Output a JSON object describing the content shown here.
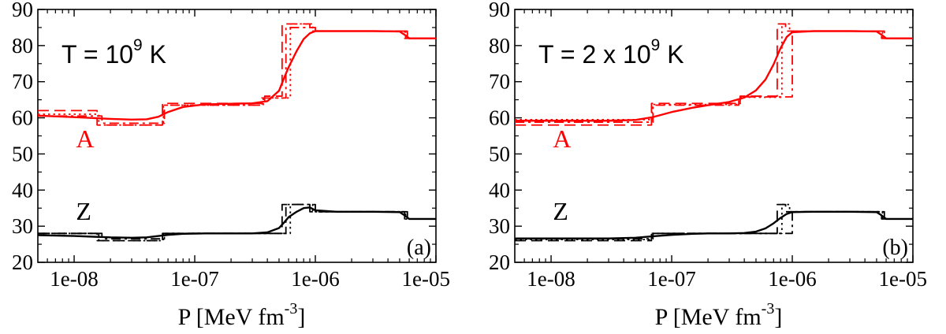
{
  "chart_data": [
    {
      "type": "line",
      "panel": "(a)",
      "annotation": {
        "base": "T = 10",
        "sup": "9",
        "suffix": " K"
      },
      "xlabel": {
        "base": "P [MeV fm",
        "sup": "-3",
        "suffix": "]"
      },
      "xscale": "log",
      "xlim": [
        5e-09,
        1e-05
      ],
      "ylim": [
        20,
        90
      ],
      "xticks": [
        1e-08,
        1e-07,
        1e-06,
        1e-05
      ],
      "xtick_labels": [
        "1e-08",
        "1e-07",
        "1e-06",
        "1e-05"
      ],
      "yticks": [
        20,
        30,
        40,
        50,
        60,
        70,
        80,
        90
      ],
      "ytick_labels": [
        "20",
        "30",
        "40",
        "50",
        "60",
        "70",
        "80",
        "90"
      ],
      "series": [
        {
          "name": "A",
          "color": "#ff0000",
          "style": "solid",
          "x": [
            5e-09,
            1e-08,
            2e-08,
            3e-08,
            4e-08,
            5e-08,
            6e-08,
            8e-08,
            1.2e-07,
            2e-07,
            3e-07,
            4e-07,
            5e-07,
            5.5e-07,
            6e-07,
            7e-07,
            8e-07,
            9e-07,
            1e-06,
            1.5e-06,
            3e-06,
            5e-06,
            5.5e-06,
            6e-06,
            1e-05
          ],
          "y": [
            60.6,
            60.2,
            59.7,
            59.5,
            59.6,
            60.3,
            61.6,
            63.0,
            63.7,
            63.9,
            64.0,
            64.6,
            67.5,
            71.0,
            74.0,
            78.5,
            81.8,
            83.4,
            84.0,
            84.0,
            84.0,
            83.9,
            83.0,
            82.0,
            82.0
          ]
        },
        {
          "name": "A (dashed)",
          "color": "#ff0000",
          "style": "dashed",
          "x": [
            5e-09,
            1.55e-08,
            1.55e-08,
            5.4e-08,
            5.4e-08,
            3.8e-07,
            3.8e-07,
            5.3e-07,
            5.3e-07,
            9e-07,
            9e-07,
            5.5e-06,
            5.5e-06,
            1e-05
          ],
          "y": [
            62,
            62,
            58,
            58,
            64,
            64,
            66,
            66,
            86,
            86,
            84,
            84,
            82,
            82
          ]
        },
        {
          "name": "A (dash-dot)",
          "color": "#ff0000",
          "style": "dashdot",
          "x": [
            5e-09,
            1.7e-08,
            1.7e-08,
            5.6e-08,
            5.6e-08,
            3.6e-07,
            3.6e-07,
            5.7e-07,
            5.7e-07,
            1e-06,
            1e-06,
            5.8e-06,
            5.8e-06,
            1e-05
          ],
          "y": [
            60.5,
            60.5,
            58.5,
            58.5,
            63.5,
            63.5,
            65.5,
            65.5,
            85,
            85,
            84,
            84,
            82,
            82
          ]
        },
        {
          "name": "A (dotted)",
          "color": "#ff0000",
          "style": "dotted",
          "x": [
            5e-09,
            1.6e-08,
            1.6e-08,
            5.5e-08,
            5.5e-08,
            3.7e-07,
            3.7e-07,
            6.2e-07,
            6.2e-07,
            9.5e-07,
            9.5e-07,
            5.6e-06,
            5.6e-06,
            1e-05
          ],
          "y": [
            61,
            61,
            58,
            58,
            63.5,
            63.5,
            65.5,
            65.5,
            86,
            86,
            84,
            84,
            82,
            82
          ]
        },
        {
          "name": "Z",
          "color": "#000000",
          "style": "solid",
          "x": [
            5e-09,
            1e-08,
            2e-08,
            3e-08,
            4e-08,
            5e-08,
            6e-08,
            8e-08,
            1.2e-07,
            2e-07,
            3e-07,
            4e-07,
            5e-07,
            5.5e-07,
            6e-07,
            7e-07,
            8e-07,
            9e-07,
            1e-06,
            1.5e-06,
            3e-06,
            5e-06,
            5.5e-06,
            6e-06,
            1e-05
          ],
          "y": [
            27.5,
            27.3,
            26.9,
            26.8,
            26.9,
            27.3,
            27.6,
            27.9,
            28.0,
            28.0,
            28.0,
            28.3,
            29.5,
            31.0,
            32.5,
            34.0,
            35.0,
            35.2,
            34.4,
            34.0,
            34.0,
            33.9,
            33.0,
            32.0,
            32.0
          ]
        },
        {
          "name": "Z (dashed)",
          "color": "#000000",
          "style": "dashed",
          "x": [
            5e-09,
            1.55e-08,
            1.55e-08,
            5.4e-08,
            5.4e-08,
            3.8e-07,
            3.8e-07,
            5.3e-07,
            5.3e-07,
            9e-07,
            9e-07,
            5.5e-06,
            5.5e-06,
            1e-05
          ],
          "y": [
            28,
            28,
            26,
            26,
            28,
            28,
            28,
            28,
            36,
            36,
            34,
            34,
            32,
            32
          ]
        },
        {
          "name": "Z (dash-dot)",
          "color": "#000000",
          "style": "dashdot",
          "x": [
            5e-09,
            1.7e-08,
            1.7e-08,
            5.6e-08,
            5.6e-08,
            5.7e-07,
            5.7e-07,
            1e-06,
            1e-06,
            5.8e-06,
            5.8e-06,
            1e-05
          ],
          "y": [
            28,
            28,
            26.5,
            26.5,
            28,
            28,
            36,
            36,
            34,
            34,
            32,
            32
          ]
        },
        {
          "name": "Z (dotted)",
          "color": "#000000",
          "style": "dotted",
          "x": [
            5e-09,
            1.6e-08,
            1.6e-08,
            5.5e-08,
            5.5e-08,
            6.2e-07,
            6.2e-07,
            9.5e-07,
            9.5e-07,
            5.6e-06,
            5.6e-06,
            1e-05
          ],
          "y": [
            28,
            28,
            26,
            26,
            28,
            28,
            36,
            36,
            34,
            34,
            32,
            32
          ]
        }
      ],
      "series_labels": [
        {
          "text": "A",
          "color": "#ff0000",
          "x": 7e-09,
          "y": 50.5
        },
        {
          "text": "Z",
          "color": "#000000",
          "x": 7e-09,
          "y": 30.5
        }
      ]
    },
    {
      "type": "line",
      "panel": "(b)",
      "annotation": {
        "base": "T = 2 x 10",
        "sup": "9",
        "suffix": " K"
      },
      "xlabel": {
        "base": "P [MeV fm",
        "sup": "-3",
        "suffix": "]"
      },
      "xscale": "log",
      "xlim": [
        5e-09,
        1e-05
      ],
      "ylim": [
        20,
        90
      ],
      "xticks": [
        1e-08,
        1e-07,
        1e-06,
        1e-05
      ],
      "xtick_labels": [
        "1e-08",
        "1e-07",
        "1e-06",
        "1e-05"
      ],
      "yticks": [
        20,
        30,
        40,
        50,
        60,
        70,
        80,
        90
      ],
      "ytick_labels": [
        "20",
        "30",
        "40",
        "50",
        "60",
        "70",
        "80",
        "90"
      ],
      "series": [
        {
          "name": "A",
          "color": "#ff0000",
          "style": "solid",
          "x": [
            5e-09,
            1e-08,
            3e-08,
            5e-08,
            7e-08,
            1e-07,
            1.5e-07,
            2e-07,
            3e-07,
            4e-07,
            5e-07,
            6e-07,
            7e-07,
            8e-07,
            9e-07,
            1e-06,
            1.5e-06,
            3e-06,
            5e-06,
            5.5e-06,
            6e-06,
            1e-05
          ],
          "y": [
            59.2,
            59.2,
            59.2,
            59.4,
            60.2,
            61.6,
            62.8,
            63.5,
            64.4,
            65.6,
            67.6,
            70.6,
            74.8,
            79.3,
            82.4,
            83.7,
            84.0,
            84.0,
            83.9,
            83.0,
            82.0,
            82.0
          ]
        },
        {
          "name": "A (dashed)",
          "color": "#ff0000",
          "style": "dashed",
          "x": [
            5e-09,
            6.8e-08,
            6.8e-08,
            3.7e-07,
            3.7e-07,
            7.5e-07,
            7.5e-07,
            8.8e-07,
            8.8e-07,
            5.5e-06,
            5.5e-06,
            1e-05
          ],
          "y": [
            58,
            58,
            64,
            64,
            66,
            66,
            86,
            86,
            84,
            84,
            82,
            82
          ]
        },
        {
          "name": "A (dash-dot)",
          "color": "#ff0000",
          "style": "dashdot",
          "x": [
            5e-09,
            7e-08,
            7e-08,
            3.6e-07,
            3.6e-07,
            1e-06,
            1e-06,
            5.8e-06,
            5.8e-06,
            1e-05
          ],
          "y": [
            58.8,
            58.8,
            63.5,
            63.5,
            65.8,
            65.8,
            84,
            84,
            82,
            82
          ]
        },
        {
          "name": "A (dotted)",
          "color": "#ff0000",
          "style": "dotted",
          "x": [
            5e-09,
            6.9e-08,
            6.9e-08,
            3.7e-07,
            3.7e-07,
            8.2e-07,
            8.2e-07,
            9.5e-07,
            9.5e-07,
            5.6e-06,
            5.6e-06,
            1e-05
          ],
          "y": [
            59.5,
            59.5,
            63.7,
            63.7,
            65.7,
            65.7,
            86,
            86,
            84,
            84,
            82,
            82
          ]
        },
        {
          "name": "Z",
          "color": "#000000",
          "style": "solid",
          "x": [
            5e-09,
            1e-08,
            3e-08,
            5e-08,
            7e-08,
            1e-07,
            1.5e-07,
            2e-07,
            3e-07,
            4e-07,
            5e-07,
            6e-07,
            7e-07,
            8e-07,
            9e-07,
            1e-06,
            1.5e-06,
            3e-06,
            5e-06,
            5.5e-06,
            6e-06,
            1e-05
          ],
          "y": [
            26.6,
            26.6,
            26.6,
            26.8,
            27.2,
            27.6,
            27.9,
            28.0,
            28.0,
            28.1,
            28.5,
            29.4,
            30.8,
            32.3,
            33.4,
            33.9,
            34.0,
            34.0,
            33.9,
            33.0,
            32.0,
            32.0
          ]
        },
        {
          "name": "Z (dashed)",
          "color": "#000000",
          "style": "dashed",
          "x": [
            5e-09,
            6.8e-08,
            6.8e-08,
            7.5e-07,
            7.5e-07,
            8.8e-07,
            8.8e-07,
            5.5e-06,
            5.5e-06,
            1e-05
          ],
          "y": [
            26,
            26,
            28,
            28,
            36,
            36,
            34,
            34,
            32,
            32
          ]
        },
        {
          "name": "Z (dash-dot)",
          "color": "#000000",
          "style": "dashdot",
          "x": [
            5e-09,
            7e-08,
            7e-08,
            1e-06,
            1e-06,
            5.8e-06,
            5.8e-06,
            1e-05
          ],
          "y": [
            26.5,
            26.5,
            28,
            28,
            34,
            34,
            32,
            32
          ]
        },
        {
          "name": "Z (dotted)",
          "color": "#000000",
          "style": "dotted",
          "x": [
            5e-09,
            6.9e-08,
            6.9e-08,
            8.2e-07,
            8.2e-07,
            9.5e-07,
            9.5e-07,
            5.6e-06,
            5.6e-06,
            1e-05
          ],
          "y": [
            26.3,
            26.3,
            28,
            28,
            36,
            36,
            34,
            34,
            32,
            32
          ]
        }
      ],
      "series_labels": [
        {
          "text": "A",
          "color": "#ff0000",
          "x": 7e-09,
          "y": 50.5
        },
        {
          "text": "Z",
          "color": "#000000",
          "x": 7e-09,
          "y": 30.5
        }
      ]
    }
  ]
}
